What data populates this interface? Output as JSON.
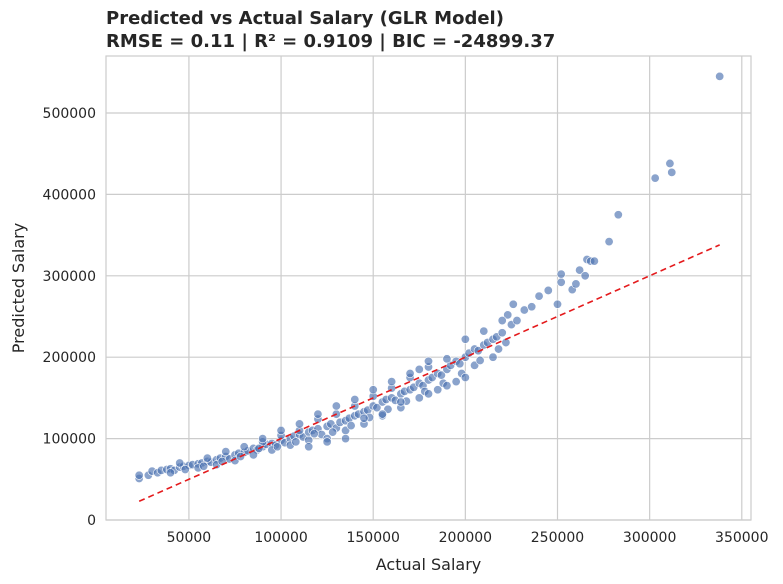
{
  "chart_data": {
    "type": "scatter",
    "title": "Predicted vs Actual Salary (GLR Model)",
    "subtitle": "RMSE = 0.11 | R² = 0.9109 | BIC = -24899.37",
    "xlabel": "Actual Salary",
    "ylabel": "Predicted Salary",
    "xlim": [
      5000,
      355000
    ],
    "ylim": [
      0,
      570000
    ],
    "xticks": [
      50000,
      100000,
      150000,
      200000,
      250000,
      300000,
      350000
    ],
    "yticks": [
      0,
      100000,
      200000,
      300000,
      400000,
      500000
    ],
    "grid": true,
    "point_color": "#4c72b0",
    "reference_line": {
      "style": "dashed",
      "color": "#e41a1c",
      "x": [
        23000,
        338000
      ],
      "y": [
        23000,
        338000
      ]
    },
    "series": [
      {
        "points": [
          [
            23000,
            51000
          ],
          [
            23000,
            55000
          ],
          [
            28000,
            55000
          ],
          [
            30000,
            60000
          ],
          [
            33000,
            58000
          ],
          [
            35000,
            61000
          ],
          [
            38000,
            62000
          ],
          [
            40000,
            63000
          ],
          [
            42000,
            61000
          ],
          [
            45000,
            65000
          ],
          [
            47000,
            66000
          ],
          [
            50000,
            67000
          ],
          [
            52000,
            68000
          ],
          [
            55000,
            69000
          ],
          [
            57000,
            70000
          ],
          [
            60000,
            72000
          ],
          [
            62000,
            71000
          ],
          [
            65000,
            74000
          ],
          [
            67000,
            76000
          ],
          [
            70000,
            78000
          ],
          [
            72000,
            75000
          ],
          [
            75000,
            80000
          ],
          [
            77000,
            82000
          ],
          [
            80000,
            83000
          ],
          [
            82000,
            85000
          ],
          [
            85000,
            88000
          ],
          [
            87000,
            86000
          ],
          [
            90000,
            90000
          ],
          [
            92000,
            93000
          ],
          [
            95000,
            94000
          ],
          [
            97000,
            92000
          ],
          [
            100000,
            98000
          ],
          [
            102000,
            95000
          ],
          [
            105000,
            100000
          ],
          [
            107000,
            103000
          ],
          [
            110000,
            105000
          ],
          [
            112000,
            102000
          ],
          [
            115000,
            108000
          ],
          [
            117000,
            110000
          ],
          [
            120000,
            112000
          ],
          [
            122000,
            105000
          ],
          [
            125000,
            115000
          ],
          [
            127000,
            118000
          ],
          [
            130000,
            113000
          ],
          [
            132000,
            120000
          ],
          [
            135000,
            122000
          ],
          [
            137000,
            125000
          ],
          [
            140000,
            128000
          ],
          [
            142000,
            130000
          ],
          [
            145000,
            133000
          ],
          [
            147000,
            135000
          ],
          [
            150000,
            140000
          ],
          [
            152000,
            138000
          ],
          [
            155000,
            145000
          ],
          [
            157000,
            148000
          ],
          [
            160000,
            150000
          ],
          [
            162000,
            147000
          ],
          [
            165000,
            155000
          ],
          [
            167000,
            158000
          ],
          [
            170000,
            160000
          ],
          [
            172000,
            163000
          ],
          [
            175000,
            168000
          ],
          [
            177000,
            165000
          ],
          [
            180000,
            172000
          ],
          [
            182000,
            175000
          ],
          [
            185000,
            180000
          ],
          [
            187000,
            178000
          ],
          [
            190000,
            185000
          ],
          [
            192000,
            190000
          ],
          [
            195000,
            195000
          ],
          [
            197000,
            192000
          ],
          [
            200000,
            200000
          ],
          [
            202000,
            205000
          ],
          [
            205000,
            210000
          ],
          [
            207000,
            208000
          ],
          [
            210000,
            215000
          ],
          [
            212000,
            218000
          ],
          [
            215000,
            222000
          ],
          [
            217000,
            225000
          ],
          [
            220000,
            230000
          ],
          [
            222000,
            218000
          ],
          [
            225000,
            240000
          ],
          [
            226000,
            265000
          ],
          [
            228000,
            245000
          ],
          [
            232000,
            258000
          ],
          [
            236000,
            262000
          ],
          [
            240000,
            275000
          ],
          [
            245000,
            282000
          ],
          [
            250000,
            265000
          ],
          [
            252000,
            292000
          ],
          [
            252000,
            302000
          ],
          [
            258000,
            283000
          ],
          [
            260000,
            290000
          ],
          [
            262000,
            307000
          ],
          [
            265000,
            300000
          ],
          [
            266000,
            320000
          ],
          [
            268000,
            318000
          ],
          [
            270000,
            318000
          ],
          [
            278000,
            342000
          ],
          [
            283000,
            375000
          ],
          [
            303000,
            420000
          ],
          [
            311000,
            438000
          ],
          [
            312000,
            427000
          ],
          [
            338000,
            545000
          ],
          [
            40000,
            58000
          ],
          [
            55000,
            64000
          ],
          [
            65000,
            68000
          ],
          [
            75000,
            73000
          ],
          [
            85000,
            80000
          ],
          [
            95000,
            86000
          ],
          [
            105000,
            92000
          ],
          [
            115000,
            98000
          ],
          [
            125000,
            100000
          ],
          [
            135000,
            110000
          ],
          [
            145000,
            118000
          ],
          [
            155000,
            128000
          ],
          [
            165000,
            138000
          ],
          [
            175000,
            150000
          ],
          [
            185000,
            160000
          ],
          [
            195000,
            170000
          ],
          [
            205000,
            190000
          ],
          [
            215000,
            200000
          ],
          [
            45000,
            70000
          ],
          [
            60000,
            76000
          ],
          [
            70000,
            84000
          ],
          [
            80000,
            90000
          ],
          [
            90000,
            96000
          ],
          [
            100000,
            104000
          ],
          [
            110000,
            110000
          ],
          [
            120000,
            124000
          ],
          [
            130000,
            130000
          ],
          [
            140000,
            140000
          ],
          [
            150000,
            152000
          ],
          [
            160000,
            162000
          ],
          [
            170000,
            175000
          ],
          [
            180000,
            188000
          ],
          [
            190000,
            198000
          ],
          [
            200000,
            222000
          ],
          [
            210000,
            232000
          ],
          [
            48000,
            62000
          ],
          [
            58000,
            66000
          ],
          [
            68000,
            72000
          ],
          [
            78000,
            78000
          ],
          [
            88000,
            88000
          ],
          [
            98000,
            90000
          ],
          [
            108000,
            96000
          ],
          [
            118000,
            106000
          ],
          [
            128000,
            108000
          ],
          [
            138000,
            116000
          ],
          [
            148000,
            126000
          ],
          [
            158000,
            136000
          ],
          [
            168000,
            146000
          ],
          [
            178000,
            158000
          ],
          [
            188000,
            168000
          ],
          [
            198000,
            180000
          ],
          [
            208000,
            196000
          ],
          [
            218000,
            210000
          ],
          [
            223000,
            252000
          ],
          [
            220000,
            245000
          ],
          [
            150000,
            160000
          ],
          [
            160000,
            170000
          ],
          [
            170000,
            180000
          ],
          [
            180000,
            195000
          ],
          [
            140000,
            148000
          ],
          [
            130000,
            140000
          ],
          [
            120000,
            130000
          ],
          [
            110000,
            118000
          ],
          [
            100000,
            110000
          ],
          [
            90000,
            100000
          ],
          [
            180000,
            155000
          ],
          [
            190000,
            165000
          ],
          [
            200000,
            175000
          ],
          [
            175000,
            185000
          ],
          [
            165000,
            145000
          ],
          [
            155000,
            130000
          ],
          [
            145000,
            125000
          ],
          [
            135000,
            100000
          ],
          [
            125000,
            96000
          ],
          [
            115000,
            90000
          ]
        ]
      }
    ]
  }
}
